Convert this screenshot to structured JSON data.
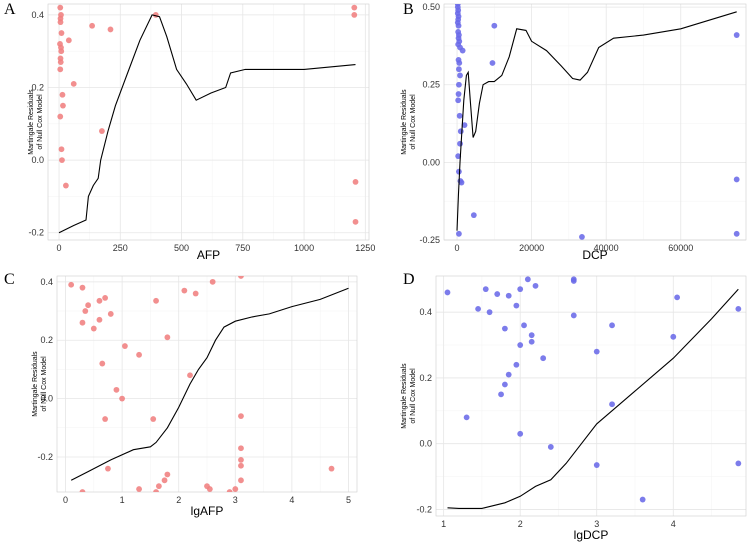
{
  "chart_data": [
    {
      "type": "scatter",
      "panel": "A",
      "xlabel": "AFP",
      "ylabel": "Martingale Residuals\nof Null Cox Model",
      "xlim": [
        -45,
        1265
      ],
      "ylim": [
        -0.22,
        0.43
      ],
      "xticks": [
        0,
        250,
        500,
        750,
        1000,
        1250
      ],
      "yticks": [
        -0.2,
        0.0,
        0.2,
        0.4
      ],
      "ytick_labels": [
        "-0.2",
        "0.0",
        "0.2",
        "0.4"
      ],
      "point_color": "#f07f7f",
      "points": [
        [
          5,
          0.42
        ],
        [
          6,
          0.39
        ],
        [
          6,
          0.38
        ],
        [
          8,
          0.4
        ],
        [
          10,
          0.35
        ],
        [
          4,
          0.32
        ],
        [
          8,
          0.31
        ],
        [
          9,
          0.3
        ],
        [
          6,
          0.28
        ],
        [
          7,
          0.27
        ],
        [
          5,
          0.25
        ],
        [
          5,
          0.12
        ],
        [
          14,
          0.18
        ],
        [
          16,
          0.15
        ],
        [
          10,
          0.03
        ],
        [
          12,
          0.0
        ],
        [
          28,
          -0.07
        ],
        [
          40,
          0.33
        ],
        [
          60,
          0.21
        ],
        [
          135,
          0.37
        ],
        [
          210,
          0.36
        ],
        [
          175,
          0.08
        ],
        [
          395,
          0.4
        ],
        [
          1205,
          0.42
        ],
        [
          1205,
          0.4
        ],
        [
          1210,
          -0.06
        ],
        [
          1210,
          -0.17
        ]
      ],
      "curve": [
        [
          0,
          -0.2
        ],
        [
          60,
          -0.18
        ],
        [
          110,
          -0.165
        ],
        [
          120,
          -0.1
        ],
        [
          140,
          -0.07
        ],
        [
          160,
          -0.05
        ],
        [
          170,
          0.0
        ],
        [
          200,
          0.08
        ],
        [
          230,
          0.15
        ],
        [
          280,
          0.24
        ],
        [
          330,
          0.33
        ],
        [
          380,
          0.4
        ],
        [
          410,
          0.395
        ],
        [
          440,
          0.34
        ],
        [
          480,
          0.25
        ],
        [
          520,
          0.21
        ],
        [
          560,
          0.165
        ],
        [
          620,
          0.185
        ],
        [
          680,
          0.2
        ],
        [
          700,
          0.24
        ],
        [
          760,
          0.25
        ],
        [
          1000,
          0.25
        ],
        [
          1210,
          0.263
        ]
      ]
    },
    {
      "type": "scatter",
      "panel": "B",
      "xlabel": "DCP",
      "ylabel": "Martingale Residuals\nof Null Cox Model",
      "xlim": [
        -3500,
        77500
      ],
      "ylim": [
        -0.25,
        0.51
      ],
      "xticks": [
        0,
        20000,
        40000,
        60000
      ],
      "yticks": [
        -0.25,
        0.0,
        0.25,
        0.5
      ],
      "ytick_labels": [
        "-0.25",
        "0.00",
        "0.25",
        "0.50"
      ],
      "point_color": "#6a6ae8",
      "points": [
        [
          200,
          0.51
        ],
        [
          200,
          0.5
        ],
        [
          300,
          0.49
        ],
        [
          200,
          0.48
        ],
        [
          400,
          0.47
        ],
        [
          300,
          0.46
        ],
        [
          200,
          0.45
        ],
        [
          400,
          0.44
        ],
        [
          300,
          0.42
        ],
        [
          500,
          0.41
        ],
        [
          400,
          0.4
        ],
        [
          600,
          0.39
        ],
        [
          300,
          0.38
        ],
        [
          800,
          0.37
        ],
        [
          1500,
          0.36
        ],
        [
          400,
          0.33
        ],
        [
          600,
          0.32
        ],
        [
          500,
          0.3
        ],
        [
          800,
          0.28
        ],
        [
          500,
          0.25
        ],
        [
          400,
          0.22
        ],
        [
          300,
          0.2
        ],
        [
          700,
          0.15
        ],
        [
          1000,
          0.1
        ],
        [
          800,
          0.06
        ],
        [
          300,
          0.02
        ],
        [
          500,
          -0.03
        ],
        [
          900,
          -0.06
        ],
        [
          1200,
          -0.065
        ],
        [
          2000,
          0.12
        ],
        [
          4500,
          -0.17
        ],
        [
          500,
          -0.23
        ],
        [
          9500,
          0.32
        ],
        [
          10000,
          0.44
        ],
        [
          33500,
          -0.24
        ],
        [
          75000,
          0.41
        ],
        [
          75000,
          -0.055
        ],
        [
          75000,
          -0.23
        ]
      ],
      "curve": [
        [
          0,
          -0.22
        ],
        [
          400,
          -0.1
        ],
        [
          800,
          0.0
        ],
        [
          1200,
          0.08
        ],
        [
          1800,
          0.2
        ],
        [
          2500,
          0.28
        ],
        [
          3000,
          0.29
        ],
        [
          3600,
          0.19
        ],
        [
          4300,
          0.08
        ],
        [
          5000,
          0.1
        ],
        [
          6000,
          0.19
        ],
        [
          7000,
          0.25
        ],
        [
          8500,
          0.26
        ],
        [
          10000,
          0.26
        ],
        [
          12000,
          0.28
        ],
        [
          14000,
          0.34
        ],
        [
          16000,
          0.43
        ],
        [
          18500,
          0.425
        ],
        [
          20000,
          0.39
        ],
        [
          24000,
          0.36
        ],
        [
          28000,
          0.31
        ],
        [
          31000,
          0.27
        ],
        [
          33000,
          0.265
        ],
        [
          35000,
          0.29
        ],
        [
          38000,
          0.37
        ],
        [
          42000,
          0.4
        ],
        [
          50000,
          0.41
        ],
        [
          60000,
          0.43
        ],
        [
          75000,
          0.485
        ]
      ]
    },
    {
      "type": "scatter",
      "panel": "C",
      "xlabel": "lgAFP",
      "ylabel": "Martingale Residuals\nof Null Cox Model",
      "xlim": [
        -0.15,
        5.15
      ],
      "ylim": [
        -0.32,
        0.42
      ],
      "xticks": [
        0,
        1,
        2,
        3,
        4,
        5
      ],
      "yticks": [
        -0.2,
        0.0,
        0.2,
        0.4
      ],
      "ytick_labels": [
        "-0.2",
        "0.0",
        "0.2",
        "0.4"
      ],
      "point_color": "#f07f7f",
      "points": [
        [
          0.1,
          0.39
        ],
        [
          0.3,
          0.38
        ],
        [
          0.7,
          0.345
        ],
        [
          0.6,
          0.335
        ],
        [
          0.4,
          0.32
        ],
        [
          0.35,
          0.3
        ],
        [
          0.8,
          0.29
        ],
        [
          0.6,
          0.27
        ],
        [
          0.3,
          0.26
        ],
        [
          0.5,
          0.24
        ],
        [
          1.05,
          0.18
        ],
        [
          1.3,
          0.15
        ],
        [
          0.9,
          0.03
        ],
        [
          1.0,
          0.0
        ],
        [
          0.65,
          0.12
        ],
        [
          0.7,
          -0.07
        ],
        [
          1.55,
          -0.07
        ],
        [
          1.6,
          0.335
        ],
        [
          1.8,
          0.21
        ],
        [
          2.1,
          0.37
        ],
        [
          2.3,
          0.36
        ],
        [
          2.6,
          0.4
        ],
        [
          3.1,
          0.42
        ],
        [
          2.2,
          0.08
        ],
        [
          3.1,
          -0.06
        ],
        [
          3.1,
          -0.17
        ],
        [
          3.1,
          -0.21
        ],
        [
          3.1,
          -0.23
        ],
        [
          0.75,
          -0.24
        ],
        [
          1.8,
          -0.26
        ],
        [
          1.75,
          -0.28
        ],
        [
          1.3,
          -0.31
        ],
        [
          1.6,
          -0.32
        ],
        [
          1.65,
          -0.3
        ],
        [
          2.5,
          -0.3
        ],
        [
          2.55,
          -0.31
        ],
        [
          2.9,
          -0.32
        ],
        [
          3.0,
          -0.31
        ],
        [
          3.1,
          -0.28
        ],
        [
          0.3,
          -0.32
        ],
        [
          4.7,
          -0.24
        ]
      ],
      "curve": [
        [
          0.1,
          -0.28
        ],
        [
          0.4,
          -0.25
        ],
        [
          0.8,
          -0.21
        ],
        [
          1.2,
          -0.175
        ],
        [
          1.5,
          -0.165
        ],
        [
          1.6,
          -0.15
        ],
        [
          1.8,
          -0.1
        ],
        [
          2.0,
          -0.03
        ],
        [
          2.2,
          0.05
        ],
        [
          2.35,
          0.1
        ],
        [
          2.5,
          0.14
        ],
        [
          2.65,
          0.2
        ],
        [
          2.8,
          0.245
        ],
        [
          3.0,
          0.265
        ],
        [
          3.3,
          0.28
        ],
        [
          3.6,
          0.29
        ],
        [
          4.0,
          0.315
        ],
        [
          4.5,
          0.34
        ],
        [
          5.0,
          0.378
        ]
      ]
    },
    {
      "type": "scatter",
      "panel": "D",
      "xlabel": "lgDCP",
      "ylabel": "Martingale Residuals\nof Null Cox Model",
      "xlim": [
        0.9,
        4.95
      ],
      "ylim": [
        -0.22,
        0.51
      ],
      "xticks": [
        1,
        2,
        3,
        4,
        5
      ],
      "yticks": [
        -0.2,
        0.0,
        0.2,
        0.4
      ],
      "ytick_labels": [
        "-0.2",
        "0.0",
        "0.2",
        "0.4"
      ],
      "point_color": "#6a6ae8",
      "points": [
        [
          1.05,
          0.46
        ],
        [
          1.55,
          0.47
        ],
        [
          1.7,
          0.455
        ],
        [
          1.85,
          0.45
        ],
        [
          2.0,
          0.47
        ],
        [
          2.1,
          0.5
        ],
        [
          2.2,
          0.48
        ],
        [
          2.7,
          0.5
        ],
        [
          2.7,
          0.495
        ],
        [
          1.45,
          0.41
        ],
        [
          1.6,
          0.4
        ],
        [
          1.95,
          0.42
        ],
        [
          1.8,
          0.35
        ],
        [
          2.15,
          0.33
        ],
        [
          2.05,
          0.36
        ],
        [
          2.15,
          0.31
        ],
        [
          2.0,
          0.3
        ],
        [
          2.3,
          0.26
        ],
        [
          2.7,
          0.39
        ],
        [
          3.2,
          0.36
        ],
        [
          1.95,
          0.24
        ],
        [
          1.85,
          0.21
        ],
        [
          1.8,
          0.18
        ],
        [
          1.75,
          0.15
        ],
        [
          2.0,
          0.03
        ],
        [
          1.3,
          0.08
        ],
        [
          2.4,
          -0.01
        ],
        [
          3.0,
          0.28
        ],
        [
          3.2,
          0.12
        ],
        [
          4.0,
          0.325
        ],
        [
          4.05,
          0.445
        ],
        [
          4.85,
          0.41
        ],
        [
          4.85,
          -0.06
        ],
        [
          3.0,
          -0.065
        ],
        [
          3.6,
          -0.17
        ]
      ],
      "curve": [
        [
          1.05,
          -0.195
        ],
        [
          1.2,
          -0.197
        ],
        [
          1.5,
          -0.197
        ],
        [
          1.8,
          -0.18
        ],
        [
          2.0,
          -0.16
        ],
        [
          2.2,
          -0.13
        ],
        [
          2.4,
          -0.11
        ],
        [
          2.6,
          -0.06
        ],
        [
          2.8,
          0.0
        ],
        [
          3.0,
          0.06
        ],
        [
          3.2,
          0.1
        ],
        [
          3.5,
          0.16
        ],
        [
          4.0,
          0.26
        ],
        [
          4.5,
          0.38
        ],
        [
          4.85,
          0.47
        ]
      ]
    }
  ]
}
